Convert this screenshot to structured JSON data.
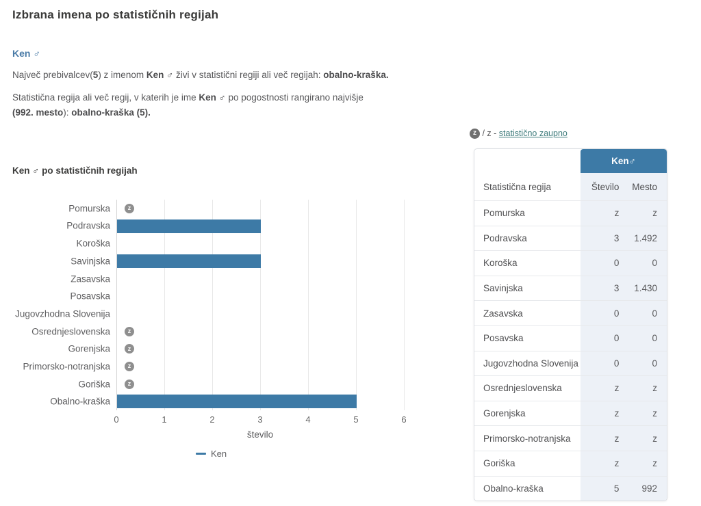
{
  "header": {
    "title": "Izbrana imena po statističnih regijah"
  },
  "name_link": {
    "label": "Ken ♂"
  },
  "paragraphs": {
    "p1_lines": [
      [
        [
          "Največ prebivalcev(",
          0
        ],
        [
          "5",
          1
        ],
        [
          ") z imenom ",
          0
        ],
        [
          "Ken ♂",
          1
        ],
        [
          " živi v statistični regiji ali več regijah: ",
          0
        ],
        [
          "obalno-kraška.",
          1
        ]
      ]
    ],
    "p2_lines": [
      [
        [
          "Statistična regija ali več regij, v katerih je ime ",
          0
        ],
        [
          "Ken ♂",
          1
        ],
        [
          " po pogostnosti rangirano najvišje",
          0
        ]
      ],
      [
        [
          "(992. mesto",
          1
        ],
        [
          "): ",
          0
        ],
        [
          "obalno-kraška (5).",
          1
        ]
      ]
    ]
  },
  "confidential_note": {
    "icon_letter": "z",
    "separator": " / z - ",
    "link_label": "statistično zaupno"
  },
  "chart_data": {
    "type": "bar",
    "orientation": "horizontal",
    "title": "Ken ♂ po statističnih regijah",
    "categories": [
      "Pomurska",
      "Podravska",
      "Koroška",
      "Savinjska",
      "Zasavska",
      "Posavska",
      "Jugovzhodna Slovenija",
      "Osrednjeslovenska",
      "Gorenjska",
      "Primorsko-notranjska",
      "Goriška",
      "Obalno-kraška"
    ],
    "values": [
      "z",
      3,
      0,
      3,
      0,
      0,
      0,
      "z",
      "z",
      "z",
      "z",
      5
    ],
    "confidential_marker": "z",
    "xlabel": "število",
    "xticks": [
      0,
      1,
      2,
      3,
      4,
      5,
      6
    ],
    "xlim": [
      0,
      6
    ],
    "grid": true,
    "legend": [
      {
        "label": "Ken",
        "color": "#3d7aa6"
      }
    ],
    "bar_color": "#3d7aa6"
  },
  "table": {
    "name_header": "Ken♂",
    "columns": [
      "Statistična regija",
      "Število",
      "Mesto"
    ],
    "rows": [
      {
        "region": "Pomurska",
        "stevilo": "z",
        "mesto": "z"
      },
      {
        "region": "Podravska",
        "stevilo": "3",
        "mesto": "1.492"
      },
      {
        "region": "Koroška",
        "stevilo": "0",
        "mesto": "0"
      },
      {
        "region": "Savinjska",
        "stevilo": "3",
        "mesto": "1.430"
      },
      {
        "region": "Zasavska",
        "stevilo": "0",
        "mesto": "0"
      },
      {
        "region": "Posavska",
        "stevilo": "0",
        "mesto": "0"
      },
      {
        "region": "Jugovzhodna Slovenija",
        "stevilo": "0",
        "mesto": "0"
      },
      {
        "region": "Osrednjeslovenska",
        "stevilo": "z",
        "mesto": "z"
      },
      {
        "region": "Gorenjska",
        "stevilo": "z",
        "mesto": "z"
      },
      {
        "region": "Primorsko-notranjska",
        "stevilo": "z",
        "mesto": "z"
      },
      {
        "region": "Goriška",
        "stevilo": "z",
        "mesto": "z"
      },
      {
        "region": "Obalno-kraška",
        "stevilo": "5",
        "mesto": "992"
      }
    ]
  },
  "colors": {
    "bar": "#3d7aa6",
    "table_header_bg": "#3d7aa6",
    "data_col_bg": "#edf1f7",
    "teal_link": "#3e7b7b",
    "blue_link": "#4a7ba7",
    "badge_gray": "#8f8f8f"
  }
}
